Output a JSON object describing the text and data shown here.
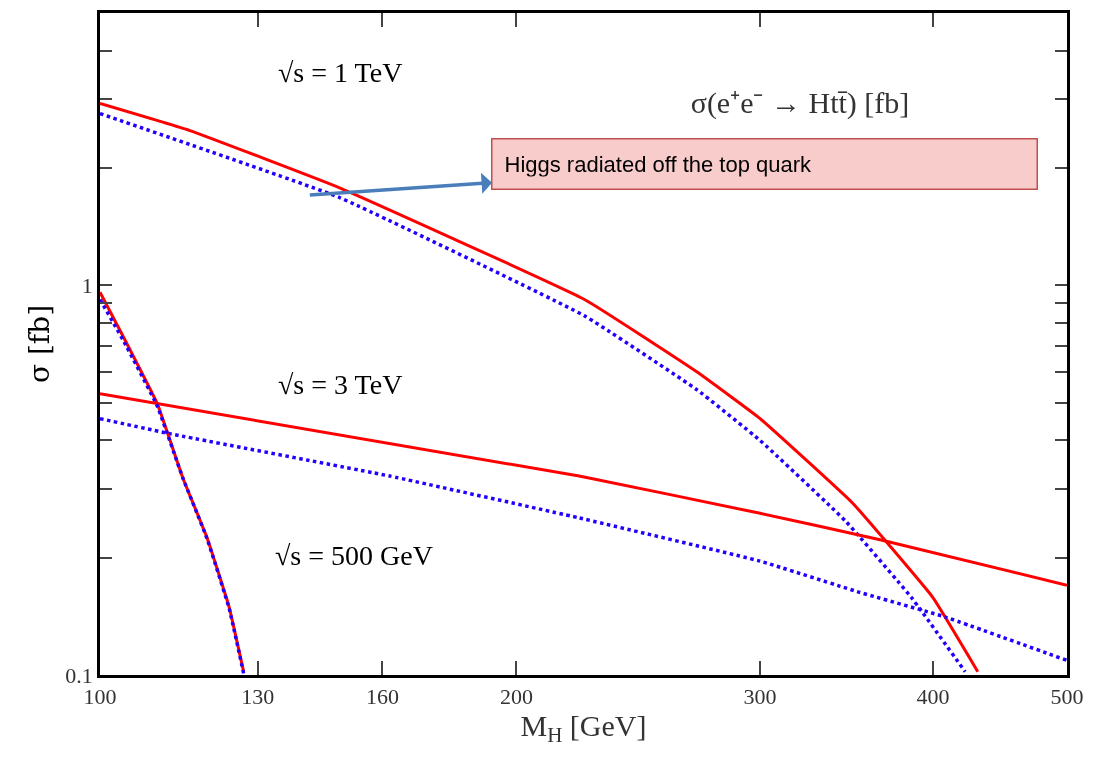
{
  "chart_data": {
    "type": "line",
    "title": "σ(e⁺e⁻ → Htt̄) [fb]",
    "xlabel": "M$_{H}$ [GeV]",
    "ylabel": "σ [fb]",
    "log": "xy",
    "xlim": [
      100,
      500
    ],
    "xticks": [
      100,
      130,
      160,
      200,
      300,
      400,
      500
    ],
    "ylim": [
      0.1,
      5
    ],
    "yticks": [
      0.1,
      {
        "value": 0.2,
        "label": null
      },
      {
        "value": 0.3,
        "label": null
      },
      {
        "value": 0.4,
        "label": null
      },
      {
        "value": 0.5,
        "label": null
      },
      {
        "value": 0.6,
        "label": null
      },
      {
        "value": 0.7,
        "label": null
      },
      {
        "value": 0.8,
        "label": null
      },
      {
        "value": 0.9,
        "label": null
      },
      1,
      {
        "value": 2,
        "label": null
      },
      {
        "value": 3,
        "label": null
      },
      {
        "value": 4,
        "label": null
      }
    ],
    "series": [
      {
        "color": "#ff0000",
        "line_style": "solid",
        "x": [
          100,
          116,
          149,
          224,
          270,
          300,
          350,
          400,
          431
        ],
        "values": [
          2.93,
          2.5,
          1.78,
          0.92,
          0.6,
          0.455,
          0.276,
          0.158,
          0.102
        ]
      },
      {
        "color": "#2200ff",
        "line_style": "dotted",
        "x": [
          100,
          149,
          224,
          270,
          300,
          346,
          386,
          422
        ],
        "values": [
          2.76,
          1.68,
          0.835,
          0.54,
          0.4,
          0.248,
          0.158,
          0.102
        ]
      },
      {
        "color": "#ff0000",
        "line_style": "solid",
        "x": [
          100,
          222,
          300,
          367,
          500
        ],
        "values": [
          0.527,
          0.324,
          0.26,
          0.222,
          0.17
        ]
      },
      {
        "color": "#2200ff",
        "line_style": "dotted",
        "x": [
          100,
          112,
          162,
          222,
          300,
          354,
          408,
          500
        ],
        "values": [
          0.455,
          0.417,
          0.324,
          0.253,
          0.196,
          0.163,
          0.141,
          0.109
        ]
      },
      {
        "color": "#ff0000",
        "line_style": "solid",
        "x": [
          100,
          104,
          110,
          114.8,
          119.5,
          124,
          127
        ],
        "values": [
          0.96,
          0.736,
          0.497,
          0.32,
          0.225,
          0.149,
          0.102
        ]
      },
      {
        "color": "#2200ff",
        "line_style": "dotted",
        "x": [
          100,
          104,
          110,
          114.8,
          119.5,
          124,
          127
        ],
        "values": [
          0.92,
          0.72,
          0.49,
          0.32,
          0.224,
          0.148,
          0.101
        ]
      }
    ],
    "annotations": [
      "√s = 1 TeV",
      "√s = 3 TeV",
      "√s = 500 GeV",
      "Higgs radiated off the top quark"
    ]
  }
}
